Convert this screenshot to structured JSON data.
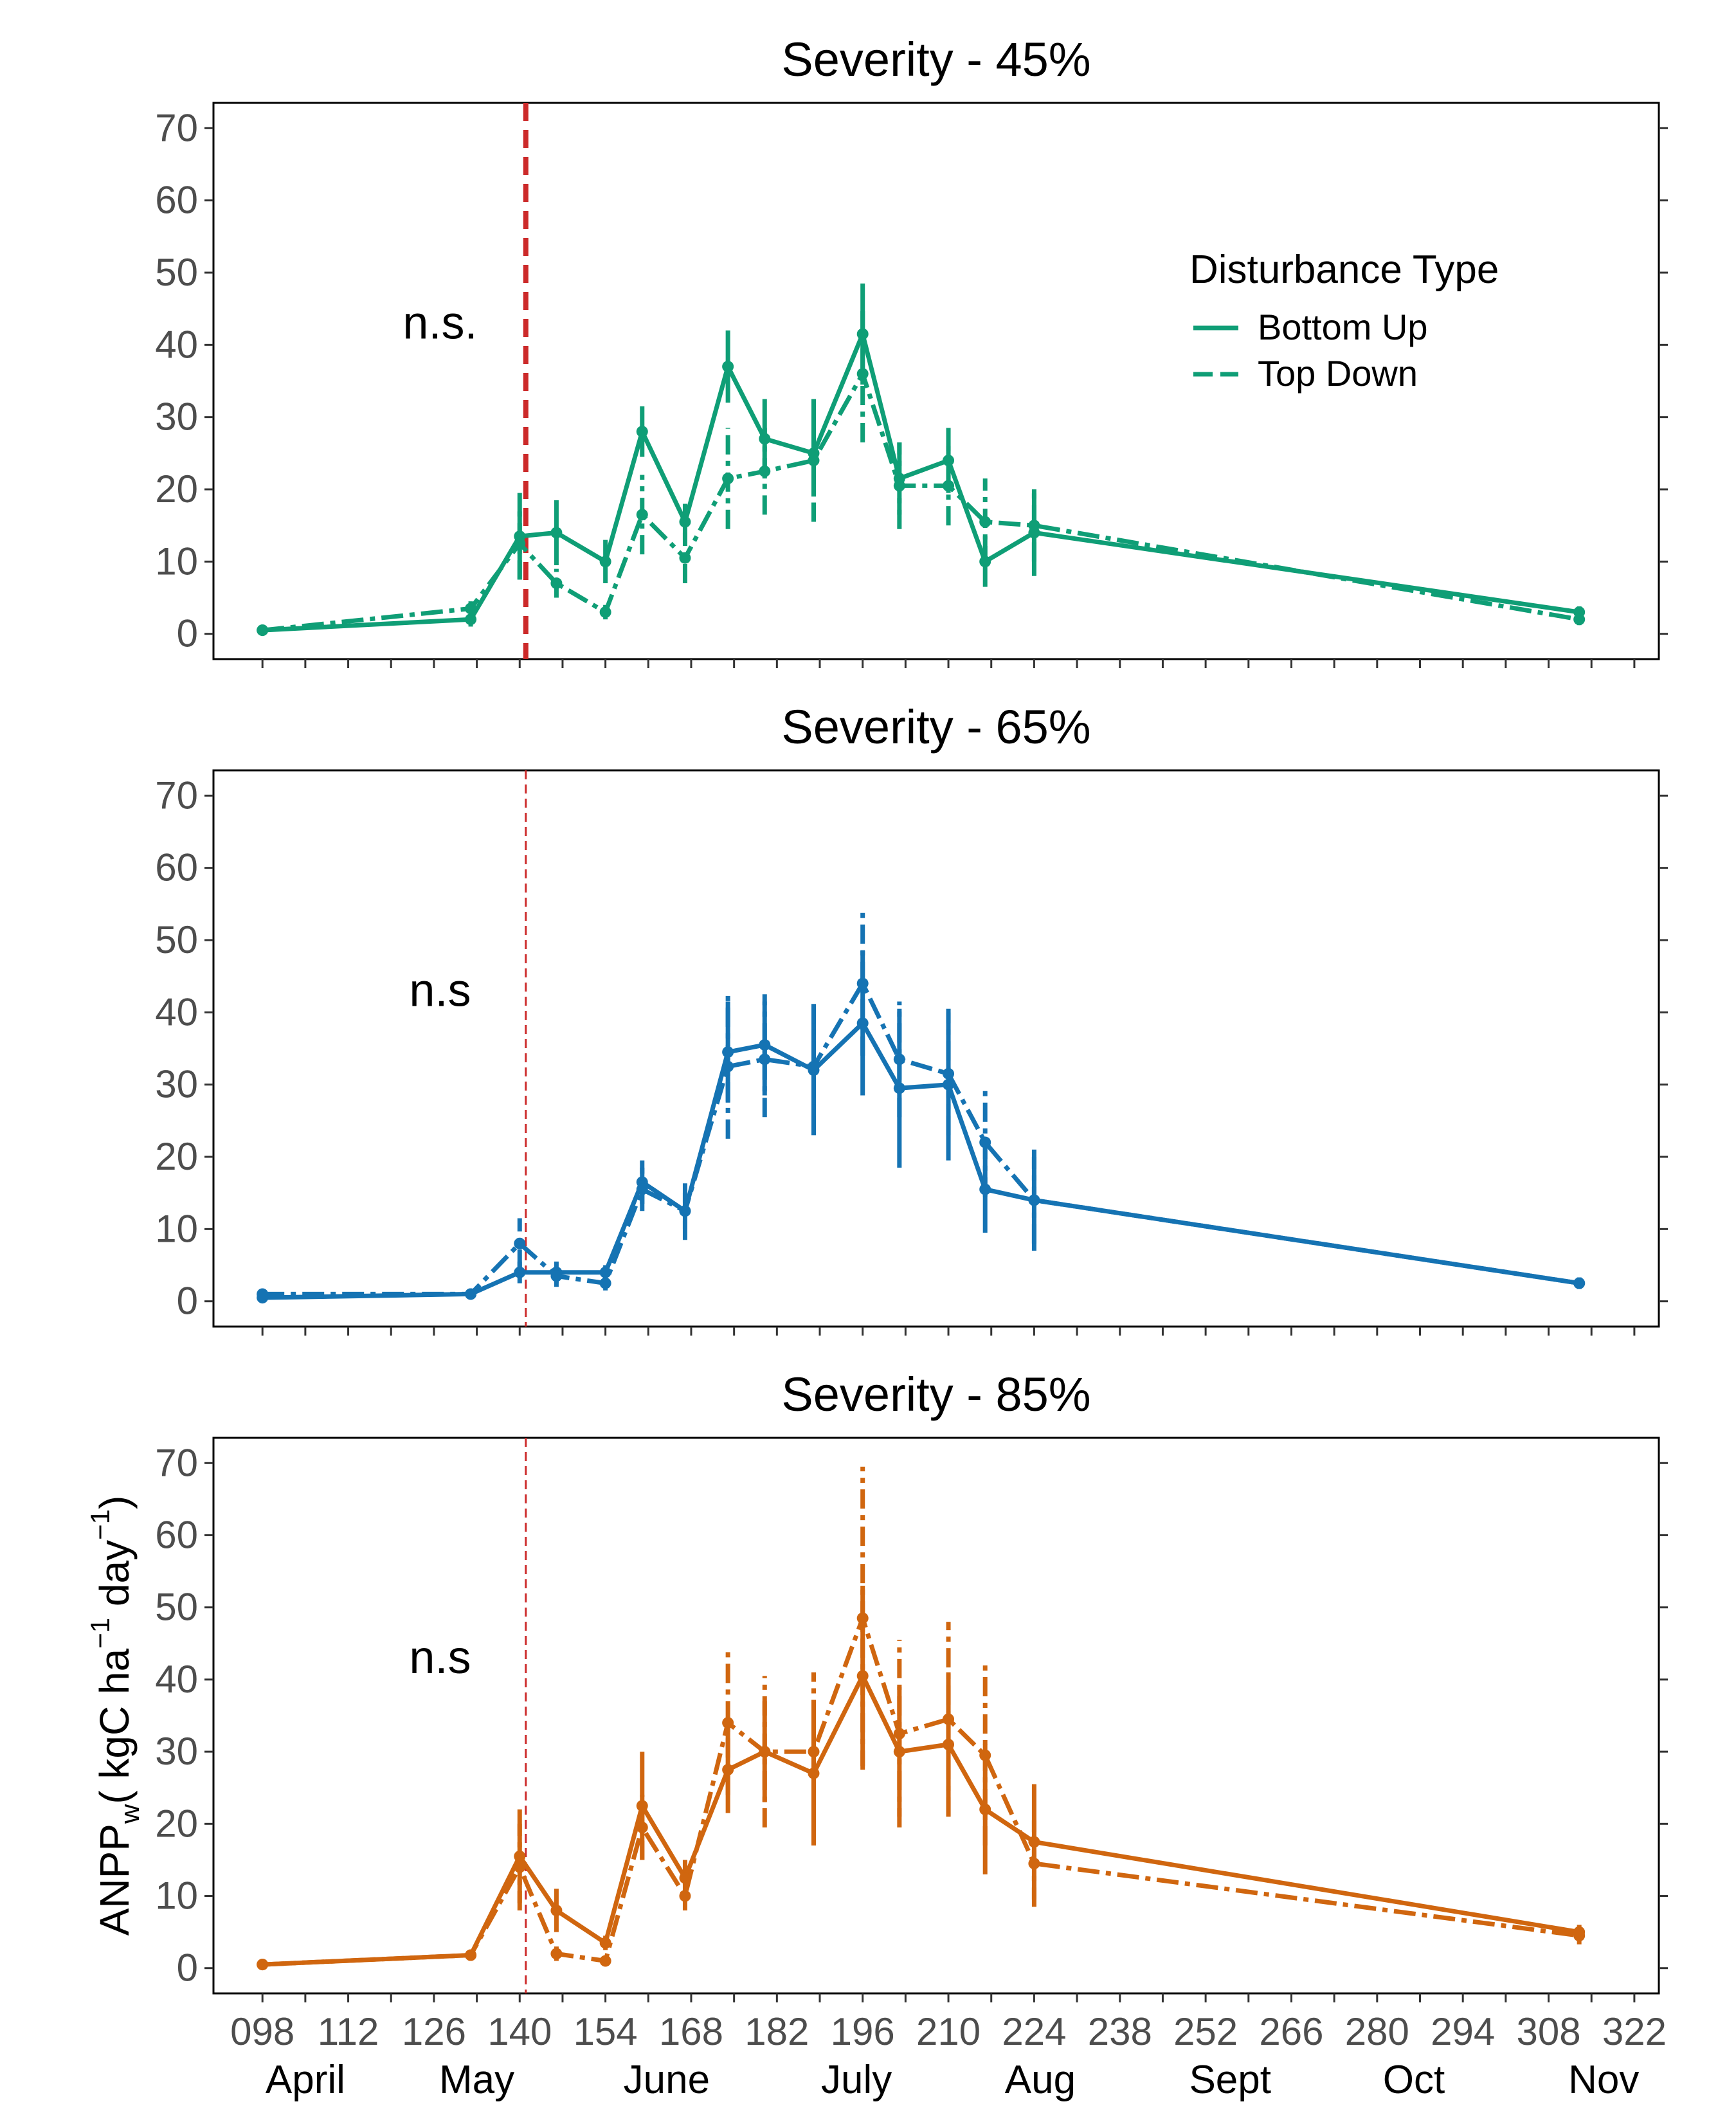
{
  "chart_data": [
    {
      "type": "line",
      "title": "Severity - 45%",
      "annotation": "n.s.",
      "color": "#0f9e76",
      "event_day": 141,
      "event_line_style": "thick-dashed",
      "series": [
        {
          "name": "Bottom Up",
          "style": "solid",
          "x": [
            98,
            132,
            140,
            146,
            154,
            160,
            167,
            174,
            180,
            188,
            196,
            202,
            210,
            216,
            224,
            313
          ],
          "y": [
            0.5,
            2,
            13.5,
            14,
            10,
            28,
            15.5,
            37,
            27,
            25,
            41.5,
            21.5,
            24,
            10,
            14,
            3
          ],
          "err": [
            0.5,
            1,
            6,
            4.5,
            3,
            3.5,
            2.5,
            5,
            5.5,
            6,
            7,
            5,
            4.5,
            3.5,
            6,
            0.8
          ]
        },
        {
          "name": "Top Down",
          "style": "dashdot",
          "x": [
            98,
            132,
            140,
            146,
            154,
            160,
            167,
            174,
            180,
            188,
            196,
            202,
            210,
            216,
            224,
            313
          ],
          "y": [
            0.5,
            3.5,
            12.5,
            7,
            3,
            16.5,
            10.5,
            21.5,
            22.5,
            24,
            36,
            20.5,
            20.5,
            15.5,
            15,
            2
          ],
          "err": [
            0.5,
            1,
            5,
            2,
            1,
            5.5,
            3.5,
            7,
            6,
            8.5,
            9.5,
            6,
            5.5,
            6,
            5,
            0.8
          ]
        }
      ],
      "ylim": [
        0,
        70
      ],
      "legend": {
        "title": "Disturbance Type",
        "placement": "top-right"
      }
    },
    {
      "type": "line",
      "title": "Severity - 65%",
      "annotation": "n.s",
      "color": "#1573b3",
      "event_day": 141,
      "event_line_style": "thin-dashed",
      "series": [
        {
          "name": "Bottom Up",
          "style": "solid",
          "x": [
            98,
            132,
            140,
            146,
            154,
            160,
            167,
            174,
            180,
            188,
            196,
            202,
            210,
            216,
            224,
            313
          ],
          "y": [
            0.5,
            1,
            4,
            4,
            4,
            16.5,
            12.5,
            34.5,
            35.5,
            32,
            38.5,
            29.5,
            30,
            15.5,
            14,
            2.5
          ],
          "err": [
            0.5,
            0.5,
            1.5,
            1.5,
            1,
            3,
            2.5,
            7,
            7,
            9,
            10,
            11,
            10.5,
            6,
            7,
            0.8
          ]
        },
        {
          "name": "Top Down",
          "style": "dashdot",
          "x": [
            98,
            132,
            140,
            146,
            154,
            160,
            167,
            174,
            180,
            188,
            196,
            202,
            210,
            216,
            224,
            313
          ],
          "y": [
            1,
            1,
            8,
            3.5,
            2.5,
            15.5,
            12.5,
            32.5,
            33.5,
            32.5,
            44,
            33.5,
            31.5,
            22,
            14,
            2.5
          ],
          "err": [
            0.5,
            0.5,
            3.5,
            1.5,
            1,
            3,
            4,
            10,
            8,
            9.5,
            10,
            8,
            8.5,
            7.5,
            6,
            0.8
          ]
        }
      ],
      "ylim": [
        0,
        70
      ]
    },
    {
      "type": "line",
      "title": "Severity - 85%",
      "annotation": "n.s",
      "color": "#d0660f",
      "event_day": 141,
      "event_line_style": "thin-dashed",
      "series": [
        {
          "name": "Bottom Up",
          "style": "solid",
          "x": [
            98,
            132,
            140,
            146,
            154,
            160,
            167,
            174,
            180,
            188,
            196,
            202,
            210,
            216,
            224,
            313
          ],
          "y": [
            0.5,
            1.8,
            15.5,
            8,
            3.5,
            22.5,
            12.5,
            27.5,
            30,
            27,
            40.5,
            30,
            31,
            22,
            17.5,
            5
          ],
          "err": [
            0.5,
            0.5,
            6.5,
            3,
            1,
            7.5,
            2.5,
            6,
            7,
            10,
            12.5,
            9,
            10,
            9,
            8,
            1
          ]
        },
        {
          "name": "Top Down",
          "style": "dashdot",
          "x": [
            98,
            132,
            140,
            146,
            154,
            160,
            167,
            174,
            180,
            188,
            196,
            202,
            210,
            216,
            224,
            313
          ],
          "y": [
            0.5,
            1.8,
            14,
            2,
            1,
            19.5,
            10,
            34,
            30,
            30,
            48.5,
            32.5,
            34.5,
            29.5,
            14.5,
            4.5
          ],
          "err": [
            0.5,
            0.5,
            6,
            1,
            0.5,
            4.5,
            2,
            10,
            10.5,
            11,
            21,
            13,
            13.5,
            12.5,
            6,
            1.2
          ]
        }
      ],
      "ylim": [
        0,
        70
      ],
      "ylabel": {
        "base": "ANPP",
        "sub": "w",
        "unit_pre": "( kgC ha",
        "sup1": "−1",
        "unit_mid": " day",
        "sup2": "−1",
        "unit_post": ")"
      }
    }
  ],
  "x_axis": {
    "xlim": [
      90,
      326
    ],
    "tick_values": [
      98,
      112,
      126,
      140,
      154,
      168,
      182,
      196,
      210,
      224,
      238,
      252,
      266,
      280,
      294,
      308,
      322
    ],
    "tick_labels": [
      "098",
      "112",
      "126",
      "140",
      "154",
      "168",
      "182",
      "196",
      "210",
      "224",
      "238",
      "252",
      "266",
      "280",
      "294",
      "308",
      "322"
    ],
    "minor_ticks": [
      105,
      119,
      133,
      147,
      161,
      175,
      189,
      203,
      217,
      231,
      245,
      259,
      273,
      287,
      301,
      315
    ],
    "months": [
      {
        "label": "April",
        "day": 105
      },
      {
        "label": "May",
        "day": 133
      },
      {
        "label": "June",
        "day": 164
      },
      {
        "label": "July",
        "day": 195
      },
      {
        "label": "Aug",
        "day": 225
      },
      {
        "label": "Sept",
        "day": 256
      },
      {
        "label": "Oct",
        "day": 286
      },
      {
        "label": "Nov",
        "day": 317
      }
    ]
  },
  "y_axis": {
    "tick_values": [
      0,
      10,
      20,
      30,
      40,
      50,
      60,
      70
    ],
    "tick_labels": [
      "0",
      "10",
      "20",
      "30",
      "40",
      "50",
      "60",
      "70"
    ]
  },
  "event_line_color": "#cc2a2a"
}
